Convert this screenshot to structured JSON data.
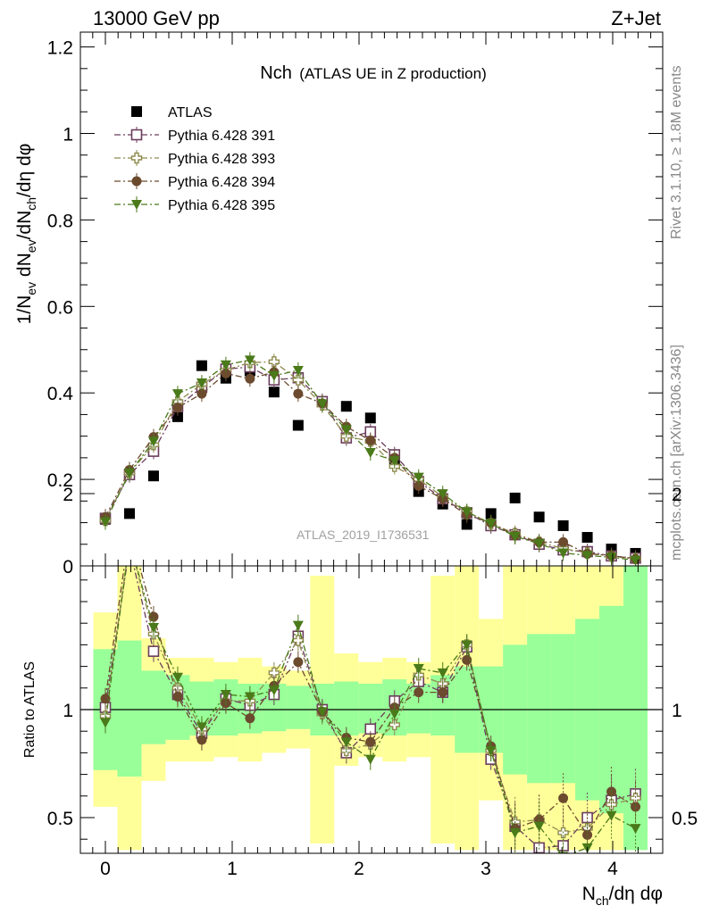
{
  "header": {
    "left": "13000 GeV pp",
    "right": "Z+Jet"
  },
  "side_labels": {
    "rivet": "Rivet 3.1.10, ≥ 1.8M events",
    "mcplots": "mcplots.cern.ch [arXiv:1306.3436]"
  },
  "watermark": "ATLAS_2019_I1736531",
  "colors": {
    "atlas": "#000000",
    "p391": "#6b3d5c",
    "p393": "#8e8a4e",
    "p394": "#6b4a2e",
    "p395": "#4a7a1a",
    "band_inner": "#99ff99",
    "band_outer": "#ffff99"
  },
  "chart_data": [
    {
      "type": "scatter",
      "title_main": "Nch",
      "title_sub": "(ATLAS UE in Z production)",
      "ylabel": "1/N_ev dN_ev/dN_ch/dη dφ",
      "ylim": [
        0,
        1.25
      ],
      "yticks": [
        "0",
        "0.2",
        "0.4",
        "0.6",
        "0.8",
        "1",
        "1.2"
      ],
      "legend": [
        "ATLAS",
        "Pythia 6.428 391",
        "Pythia 6.428 393",
        "Pythia 6.428 394",
        "Pythia 6.428 395"
      ],
      "x": [
        0.0,
        0.19,
        0.38,
        0.57,
        0.76,
        0.95,
        1.14,
        1.33,
        1.52,
        1.71,
        1.9,
        2.09,
        2.28,
        2.47,
        2.66,
        2.85,
        3.04,
        3.23,
        3.42,
        3.61,
        3.8,
        3.99,
        4.18
      ],
      "series": [
        {
          "name": "ATLAS",
          "values": [
            0.108,
            0.121,
            0.208,
            0.345,
            0.463,
            0.434,
            0.451,
            0.402,
            0.325,
            0.379,
            0.369,
            0.342,
            0.248,
            0.172,
            0.143,
            0.096,
            0.121,
            0.157,
            0.113,
            0.093,
            0.066,
            0.039,
            0.029
          ]
        },
        {
          "name": "Pythia 6.428 391",
          "values": [
            0.11,
            0.211,
            0.265,
            0.368,
            0.413,
            0.455,
            0.46,
            0.43,
            0.435,
            0.38,
            0.296,
            0.31,
            0.257,
            0.195,
            0.155,
            0.123,
            0.093,
            0.072,
            0.05,
            0.037,
            0.033,
            0.023,
            0.018
          ]
        },
        {
          "name": "Pythia 6.428 393",
          "values": [
            0.105,
            0.215,
            0.28,
            0.38,
            0.42,
            0.453,
            0.47,
            0.472,
            0.43,
            0.372,
            0.3,
            0.288,
            0.23,
            0.2,
            0.16,
            0.125,
            0.098,
            0.075,
            0.055,
            0.04,
            0.03,
            0.022,
            0.017
          ]
        },
        {
          "name": "Pythia 6.428 394",
          "values": [
            0.113,
            0.222,
            0.298,
            0.366,
            0.398,
            0.445,
            0.433,
            0.448,
            0.398,
            0.376,
            0.322,
            0.29,
            0.25,
            0.185,
            0.155,
            0.118,
            0.1,
            0.07,
            0.055,
            0.055,
            0.028,
            0.024,
            0.016
          ]
        },
        {
          "name": "Pythia 6.428 395",
          "values": [
            0.102,
            0.215,
            0.288,
            0.398,
            0.423,
            0.465,
            0.476,
            0.44,
            0.452,
            0.375,
            0.315,
            0.262,
            0.243,
            0.205,
            0.167,
            0.125,
            0.098,
            0.068,
            0.052,
            0.03,
            0.024,
            0.02,
            0.013
          ]
        }
      ]
    },
    {
      "type": "scatter",
      "ylabel": "Ratio to ATLAS",
      "xlabel": "N_ch/dη dφ",
      "ylim": [
        0.35,
        2.25
      ],
      "xlim": [
        -0.15,
        4.35
      ],
      "yticks": [
        "0.5",
        "1",
        "2"
      ],
      "xticks": [
        "0",
        "1",
        "2",
        "3",
        "4"
      ],
      "reference": 1,
      "band_inner": [
        [
          0.72,
          1.28
        ],
        [
          0.69,
          1.32
        ],
        [
          0.84,
          1.18
        ],
        [
          0.86,
          1.16
        ],
        [
          0.88,
          1.13
        ],
        [
          0.88,
          1.14
        ],
        [
          0.89,
          1.12
        ],
        [
          0.9,
          1.12
        ],
        [
          0.91,
          1.11
        ],
        [
          0.88,
          1.12
        ],
        [
          0.88,
          1.13
        ],
        [
          0.89,
          1.12
        ],
        [
          0.88,
          1.14
        ],
        [
          0.89,
          1.12
        ],
        [
          0.88,
          1.16
        ],
        [
          0.8,
          1.2
        ],
        [
          0.8,
          1.2
        ],
        [
          0.7,
          1.3
        ],
        [
          0.66,
          1.35
        ],
        [
          0.66,
          1.35
        ],
        [
          0.58,
          1.42
        ],
        [
          0.52,
          1.48
        ],
        [
          0.35,
          1.75
        ]
      ],
      "band_outer": [
        [
          0.55,
          1.45
        ],
        [
          0.35,
          1.75
        ],
        [
          0.67,
          1.33
        ],
        [
          0.76,
          1.24
        ],
        [
          0.76,
          1.24
        ],
        [
          0.78,
          1.22
        ],
        [
          0.76,
          1.24
        ],
        [
          0.8,
          1.2
        ],
        [
          0.82,
          1.18
        ],
        [
          0.38,
          1.62
        ],
        [
          0.74,
          1.26
        ],
        [
          0.78,
          1.22
        ],
        [
          0.76,
          1.24
        ],
        [
          0.78,
          1.22
        ],
        [
          0.38,
          1.62
        ],
        [
          0.35,
          1.7
        ],
        [
          0.58,
          1.42
        ],
        [
          0.35,
          1.83
        ],
        [
          0.35,
          1.83
        ],
        [
          0.35,
          2.0
        ],
        [
          0.35,
          2.0
        ],
        [
          0.35,
          2.25
        ],
        [
          0.35,
          2.25
        ]
      ],
      "series": [
        {
          "name": "Pythia 6.428 391",
          "values": [
            1.01,
            1.75,
            1.27,
            1.07,
            0.89,
            1.05,
            1.02,
            1.07,
            1.34,
            1.0,
            0.8,
            0.91,
            1.04,
            1.13,
            1.08,
            1.29,
            0.77,
            0.46,
            0.36,
            0.37,
            0.5,
            0.58,
            0.61
          ]
        },
        {
          "name": "Pythia 6.428 393",
          "values": [
            0.97,
            1.78,
            1.35,
            1.1,
            0.91,
            1.04,
            1.04,
            1.17,
            1.32,
            0.98,
            0.81,
            0.84,
            0.93,
            1.16,
            1.12,
            1.3,
            0.81,
            0.48,
            0.49,
            0.43,
            0.45,
            0.56,
            0.59
          ]
        },
        {
          "name": "Pythia 6.428 394",
          "values": [
            1.05,
            1.83,
            1.43,
            1.06,
            0.86,
            1.03,
            0.96,
            1.11,
            1.22,
            0.99,
            0.87,
            0.85,
            1.01,
            1.08,
            1.08,
            1.23,
            0.83,
            0.45,
            0.49,
            0.59,
            0.42,
            0.62,
            0.55
          ]
        },
        {
          "name": "Pythia 6.428 395",
          "values": [
            0.94,
            1.78,
            1.38,
            1.15,
            0.92,
            1.07,
            1.06,
            1.09,
            1.39,
            0.99,
            0.85,
            0.77,
            0.98,
            1.19,
            1.17,
            1.3,
            0.81,
            0.43,
            0.46,
            0.32,
            0.36,
            0.51,
            0.45
          ]
        }
      ]
    }
  ]
}
